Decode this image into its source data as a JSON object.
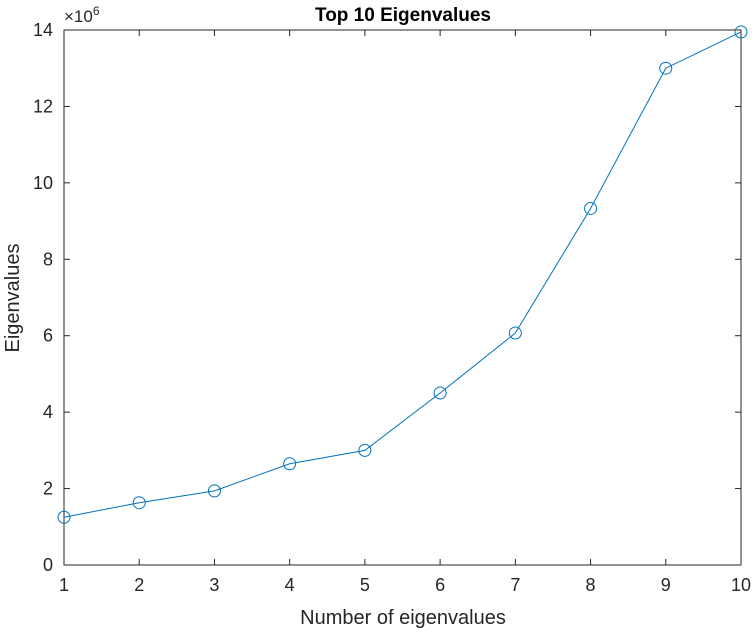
{
  "chart_data": {
    "type": "line",
    "title": "Top 10 Eigenvalues",
    "xlabel": "Number of eigenvalues",
    "ylabel": "Eigenvalues",
    "x": [
      1,
      2,
      3,
      4,
      5,
      6,
      7,
      8,
      9,
      10
    ],
    "series": [
      {
        "values": [
          1.25,
          1.63,
          1.94,
          2.65,
          3.0,
          4.5,
          6.07,
          9.33,
          13.0,
          13.95
        ],
        "color": "#0072BD",
        "marker": "circle"
      }
    ],
    "xlim": [
      1,
      10
    ],
    "ylim": [
      0,
      14
    ],
    "x_ticks": [
      1,
      2,
      3,
      4,
      5,
      6,
      7,
      8,
      9,
      10
    ],
    "y_ticks": [
      0,
      2,
      4,
      6,
      8,
      10,
      12,
      14
    ],
    "y_multiplier": {
      "base": "×10",
      "exponent": "6"
    },
    "grid": false,
    "legend": "none",
    "axis_color": "#262626"
  }
}
